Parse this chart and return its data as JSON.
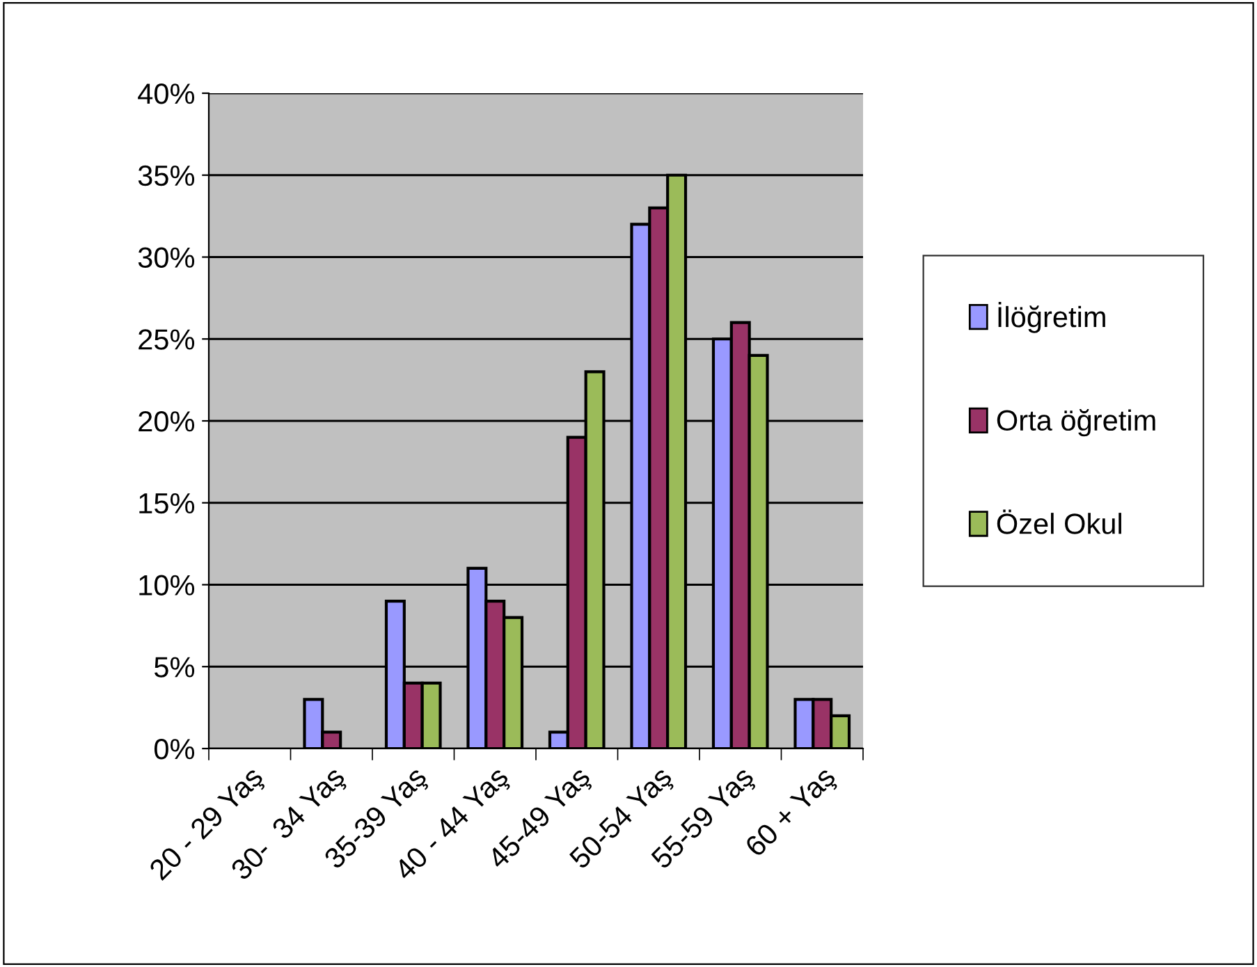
{
  "chart_data": {
    "type": "bar",
    "categories": [
      "20 - 29 Yaş",
      "30-  34 Yaş",
      "35-39 Yaş",
      "40 - 44 Yaş",
      "45-49 Yaş",
      "50-54 Yaş",
      "55-59 Yaş",
      "60 + Yaş"
    ],
    "series": [
      {
        "name": "İlöğretim",
        "color": "#9999ff",
        "values": [
          0,
          3,
          9,
          11,
          1,
          32,
          25,
          3
        ]
      },
      {
        "name": "Orta öğretim",
        "color": "#993366",
        "values": [
          0,
          1,
          4,
          9,
          19,
          33,
          26,
          3
        ]
      },
      {
        "name": "Özel Okul",
        "color": "#9bbb59",
        "values": [
          0,
          0,
          4,
          8,
          23,
          35,
          24,
          2
        ]
      }
    ],
    "ylim": [
      0,
      40
    ],
    "yticks": [
      {
        "value": 0,
        "label": "0%"
      },
      {
        "value": 5,
        "label": "5%"
      },
      {
        "value": 10,
        "label": "10%"
      },
      {
        "value": 15,
        "label": "15%"
      },
      {
        "value": 20,
        "label": "20%"
      },
      {
        "value": 25,
        "label": "25%"
      },
      {
        "value": 30,
        "label": "30%"
      },
      {
        "value": 35,
        "label": "35%"
      },
      {
        "value": 40,
        "label": "40%"
      }
    ],
    "grid": "y",
    "legend": "right"
  }
}
